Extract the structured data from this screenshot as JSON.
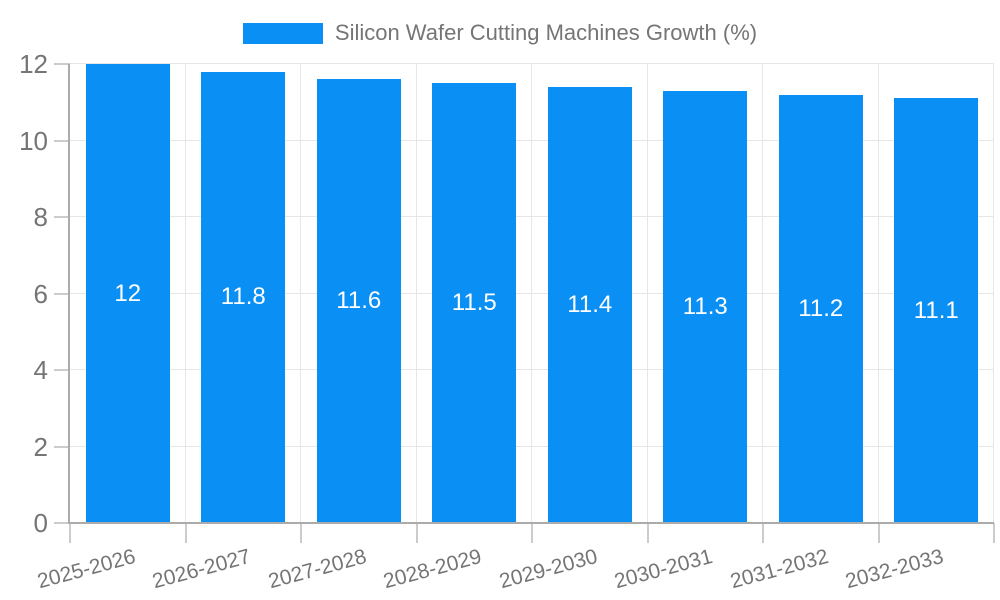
{
  "legend": {
    "label": "Silicon Wafer Cutting Machines Growth (%)"
  },
  "chart_data": {
    "type": "bar",
    "title": "Silicon Wafer Cutting Machines Growth (%)",
    "categories": [
      "2025-2026",
      "2026-2027",
      "2027-2028",
      "2028-2029",
      "2029-2030",
      "2030-2031",
      "2031-2032",
      "2032-2033"
    ],
    "values": [
      12,
      11.8,
      11.6,
      11.5,
      11.4,
      11.3,
      11.2,
      11.1
    ],
    "value_labels": [
      "12",
      "11.8",
      "11.6",
      "11.5",
      "11.4",
      "11.3",
      "11.2",
      "11.1"
    ],
    "xlabel": "",
    "ylabel": "",
    "ylim": [
      0,
      12
    ],
    "yticks": [
      0,
      2,
      4,
      6,
      8,
      10,
      12
    ],
    "grid": true,
    "legend_position": "top",
    "x_label_rotation_deg": -15,
    "colors": {
      "bar": "#0A8FF5",
      "value_label": "#FFFFFF",
      "grid_line": "#E6E6E6",
      "axis_line": "#ABABAB",
      "tick_mark": "#CCCCCC",
      "tick_text": "#757575",
      "legend_text": "#757575",
      "background": "#FFFFFF"
    }
  }
}
